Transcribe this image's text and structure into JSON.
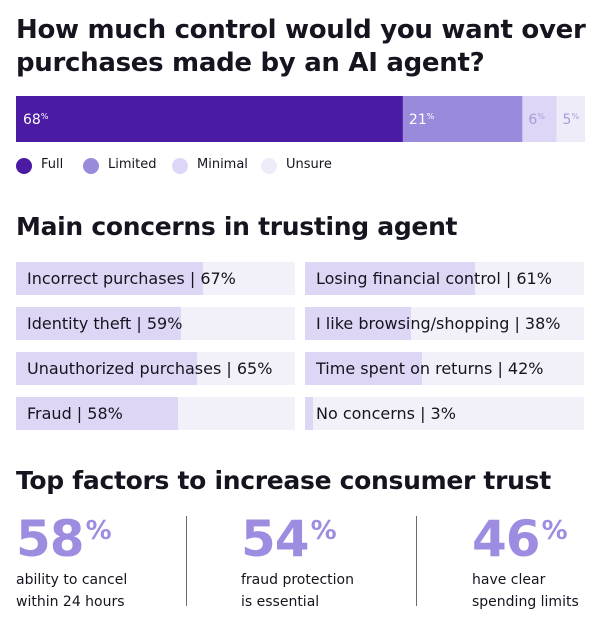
{
  "title": "How much control would you want over purchases made by an AI agent?",
  "chart_data": [
    {
      "type": "bar",
      "orientation": "horizontal-stacked",
      "title": "How much control would you want over purchases made by an AI agent?",
      "series": [
        {
          "name": "Full",
          "value": 68,
          "label": "68",
          "color": "#4b1ba3"
        },
        {
          "name": "Limited",
          "value": 21,
          "label": "21",
          "color": "#9a8adc"
        },
        {
          "name": "Minimal",
          "value": 6,
          "label": "6",
          "color": "#ddd6f6"
        },
        {
          "name": "Unsure",
          "value": 5,
          "label": "5",
          "color": "#efecfa"
        }
      ],
      "legend": "bottom-left",
      "unit": "%"
    },
    {
      "type": "bar",
      "title": "Main concerns in trusting agent",
      "categories": [
        "Incorrect purchases",
        "Losing financial control",
        "Identity theft",
        "I like browsing/shopping",
        "Unauthorized purchases",
        "Time spent on returns",
        "Fraud",
        "No concerns"
      ],
      "values": [
        67,
        61,
        59,
        38,
        65,
        42,
        58,
        3
      ],
      "labels": [
        "Incorrect purchases | 67%",
        "Losing financial control | 61%",
        "Identity theft | 59%",
        "I like browsing/shopping | 38%",
        "Unauthorized purchases | 65%",
        "Time spent on returns | 42%",
        "Fraud | 58%",
        "No concerns | 3%"
      ],
      "ylim": [
        0,
        100
      ]
    }
  ],
  "concerns_title": "Main concerns in trusting agent",
  "factors_title": "Top factors to increase consumer trust",
  "factors": [
    {
      "number": "58",
      "pct": "%",
      "line1": "ability to cancel",
      "line2": "within 24 hours"
    },
    {
      "number": "54",
      "pct": "%",
      "line1": "fraud protection",
      "line2": "is essential"
    },
    {
      "number": "46",
      "pct": "%",
      "line1": "have clear",
      "line2": "spending limits"
    }
  ],
  "colors": {
    "brand_dark": "#4b1ba3",
    "brand_mid": "#9a8adc",
    "big_number": "#9d8ce0",
    "bar_fill": "#ddd6f5",
    "bar_track": "#f2f0f8"
  }
}
